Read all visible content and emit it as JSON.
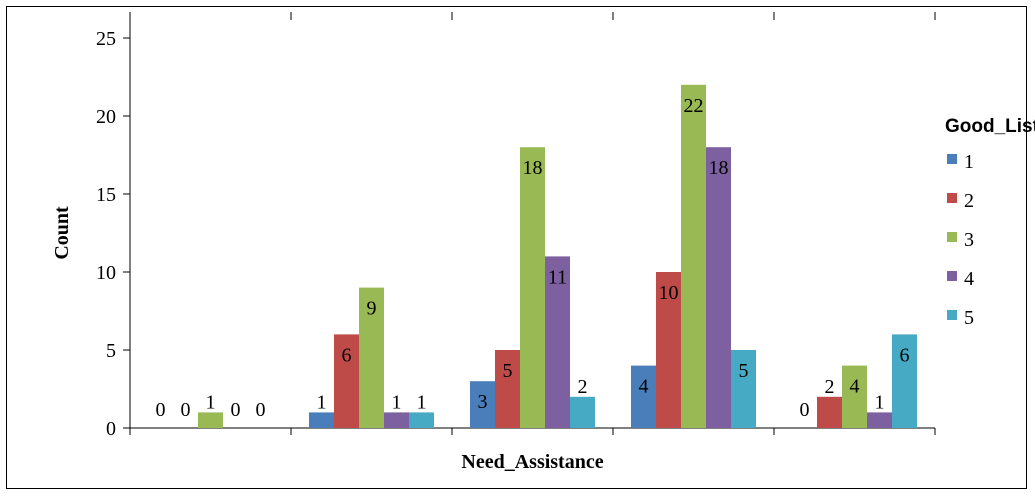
{
  "chart_data": {
    "type": "bar",
    "categories": [
      "",
      "",
      "",
      "",
      ""
    ],
    "series": [
      {
        "name": "1",
        "color": "#4a7ebb",
        "values": [
          0,
          1,
          3,
          4,
          0
        ]
      },
      {
        "name": "2",
        "color": "#be4b48",
        "values": [
          0,
          6,
          5,
          10,
          2
        ]
      },
      {
        "name": "3",
        "color": "#98b954",
        "values": [
          1,
          9,
          18,
          22,
          4
        ]
      },
      {
        "name": "4",
        "color": "#7d60a0",
        "values": [
          0,
          1,
          11,
          18,
          1
        ]
      },
      {
        "name": "5",
        "color": "#46aac5",
        "values": [
          0,
          1,
          2,
          5,
          6
        ]
      }
    ],
    "xlabel": "Need_Assistance",
    "ylabel": "Count",
    "ylim": [
      0,
      25
    ],
    "yticks": [
      0,
      5,
      10,
      15,
      20,
      25
    ],
    "legend_title": "Good_List",
    "legend_position": "right",
    "grid": false
  }
}
